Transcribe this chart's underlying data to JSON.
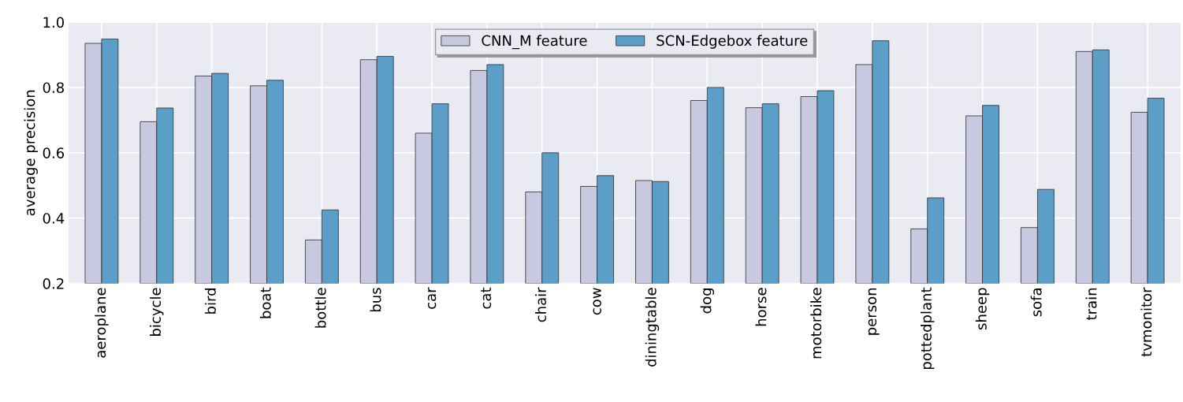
{
  "chart_data": {
    "type": "bar",
    "ylabel": "average precision",
    "categories": [
      "aeroplane",
      "bicycle",
      "bird",
      "boat",
      "bottle",
      "bus",
      "car",
      "cat",
      "chair",
      "cow",
      "diningtable",
      "dog",
      "horse",
      "motorbike",
      "person",
      "pottedplant",
      "sheep",
      "sofa",
      "train",
      "tvmonitor"
    ],
    "series": [
      {
        "name": "CNN_M feature",
        "color": "#c8c9e0",
        "values": [
          0.935,
          0.695,
          0.835,
          0.805,
          0.333,
          0.885,
          0.66,
          0.852,
          0.48,
          0.497,
          0.515,
          0.76,
          0.738,
          0.772,
          0.87,
          0.367,
          0.713,
          0.371,
          0.91,
          0.724
        ]
      },
      {
        "name": "SCN-Edgebox feature",
        "color": "#5b9fc9",
        "values": [
          0.948,
          0.737,
          0.843,
          0.822,
          0.425,
          0.895,
          0.75,
          0.87,
          0.6,
          0.53,
          0.512,
          0.8,
          0.75,
          0.79,
          0.943,
          0.462,
          0.745,
          0.488,
          0.915,
          0.767
        ]
      }
    ],
    "ylim": [
      0.2,
      1.0
    ],
    "yticks": [
      0.2,
      0.4,
      0.6,
      0.8,
      {
        "value": 1.0,
        "label": "1.0"
      }
    ],
    "grid": true,
    "legend": "top"
  }
}
